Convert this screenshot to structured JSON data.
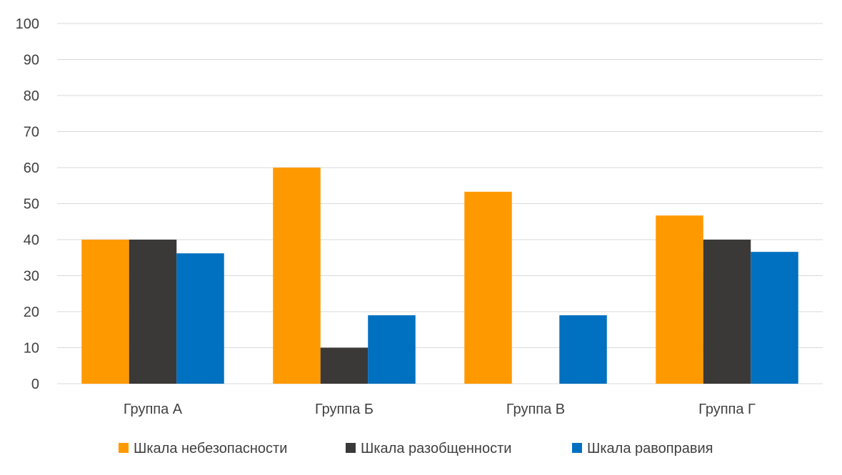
{
  "chart_data": {
    "type": "bar",
    "categories": [
      "Группа А",
      "Группа Б",
      "Группа В",
      "Группа Г"
    ],
    "series": [
      {
        "name": "Шкала небезопасности",
        "color": "#ff9900",
        "values": [
          40,
          60,
          53.3,
          46.7
        ]
      },
      {
        "name": "Шкала разобщенности",
        "color": "#3a3938",
        "values": [
          40,
          10,
          0,
          40
        ]
      },
      {
        "name": "Шкала равоправия",
        "color": "#0070c0",
        "values": [
          36.2,
          19,
          19,
          36.6
        ]
      }
    ],
    "ylim": [
      0,
      100
    ],
    "yticks": [
      0,
      10,
      20,
      30,
      40,
      50,
      60,
      70,
      80,
      90,
      100
    ],
    "grid": true,
    "legend_position": "bottom"
  }
}
